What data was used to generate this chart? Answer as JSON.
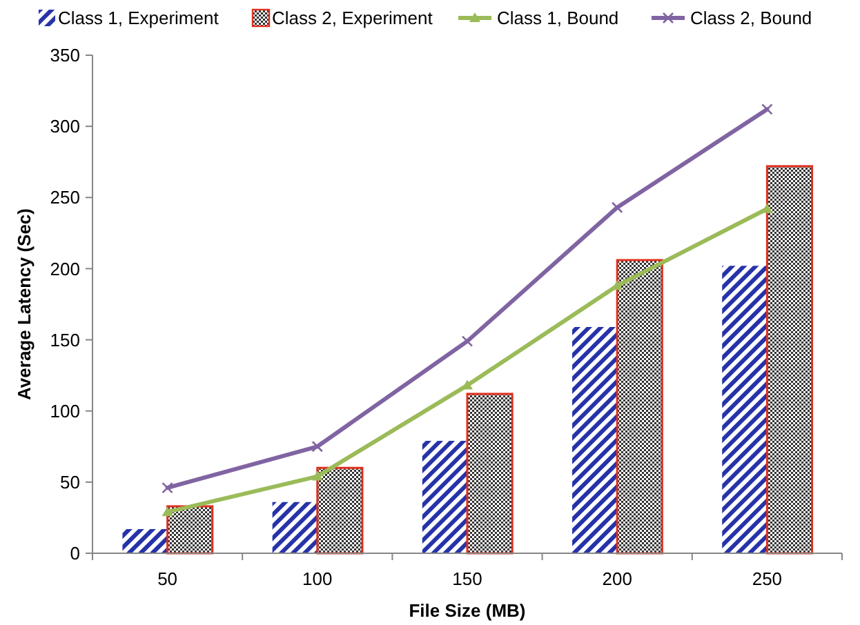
{
  "chart_data": {
    "type": "bar",
    "xlabel": "File Size (MB)",
    "ylabel": "Average Latency (Sec)",
    "categories": [
      "50",
      "100",
      "150",
      "200",
      "250"
    ],
    "series": [
      {
        "name": "Class 1, Experiment",
        "type": "bar",
        "color": "#2633a8",
        "values": [
          17,
          36,
          79,
          159,
          202
        ]
      },
      {
        "name": "Class 2, Experiment",
        "type": "bar",
        "color": "#e0301e",
        "values": [
          33,
          60,
          112,
          206,
          272
        ]
      },
      {
        "name": "Class 1, Bound",
        "type": "line",
        "color": "#9bbb59",
        "marker": "triangle",
        "values": [
          29,
          54,
          118,
          188,
          242
        ]
      },
      {
        "name": "Class 2, Bound",
        "type": "line",
        "color": "#8064a2",
        "marker": "cross",
        "values": [
          46,
          75,
          149,
          243,
          312
        ]
      }
    ],
    "ylim": [
      0,
      350
    ],
    "yticks": [
      0,
      50,
      100,
      150,
      200,
      250,
      300,
      350
    ],
    "grid": false,
    "legend": "top"
  }
}
